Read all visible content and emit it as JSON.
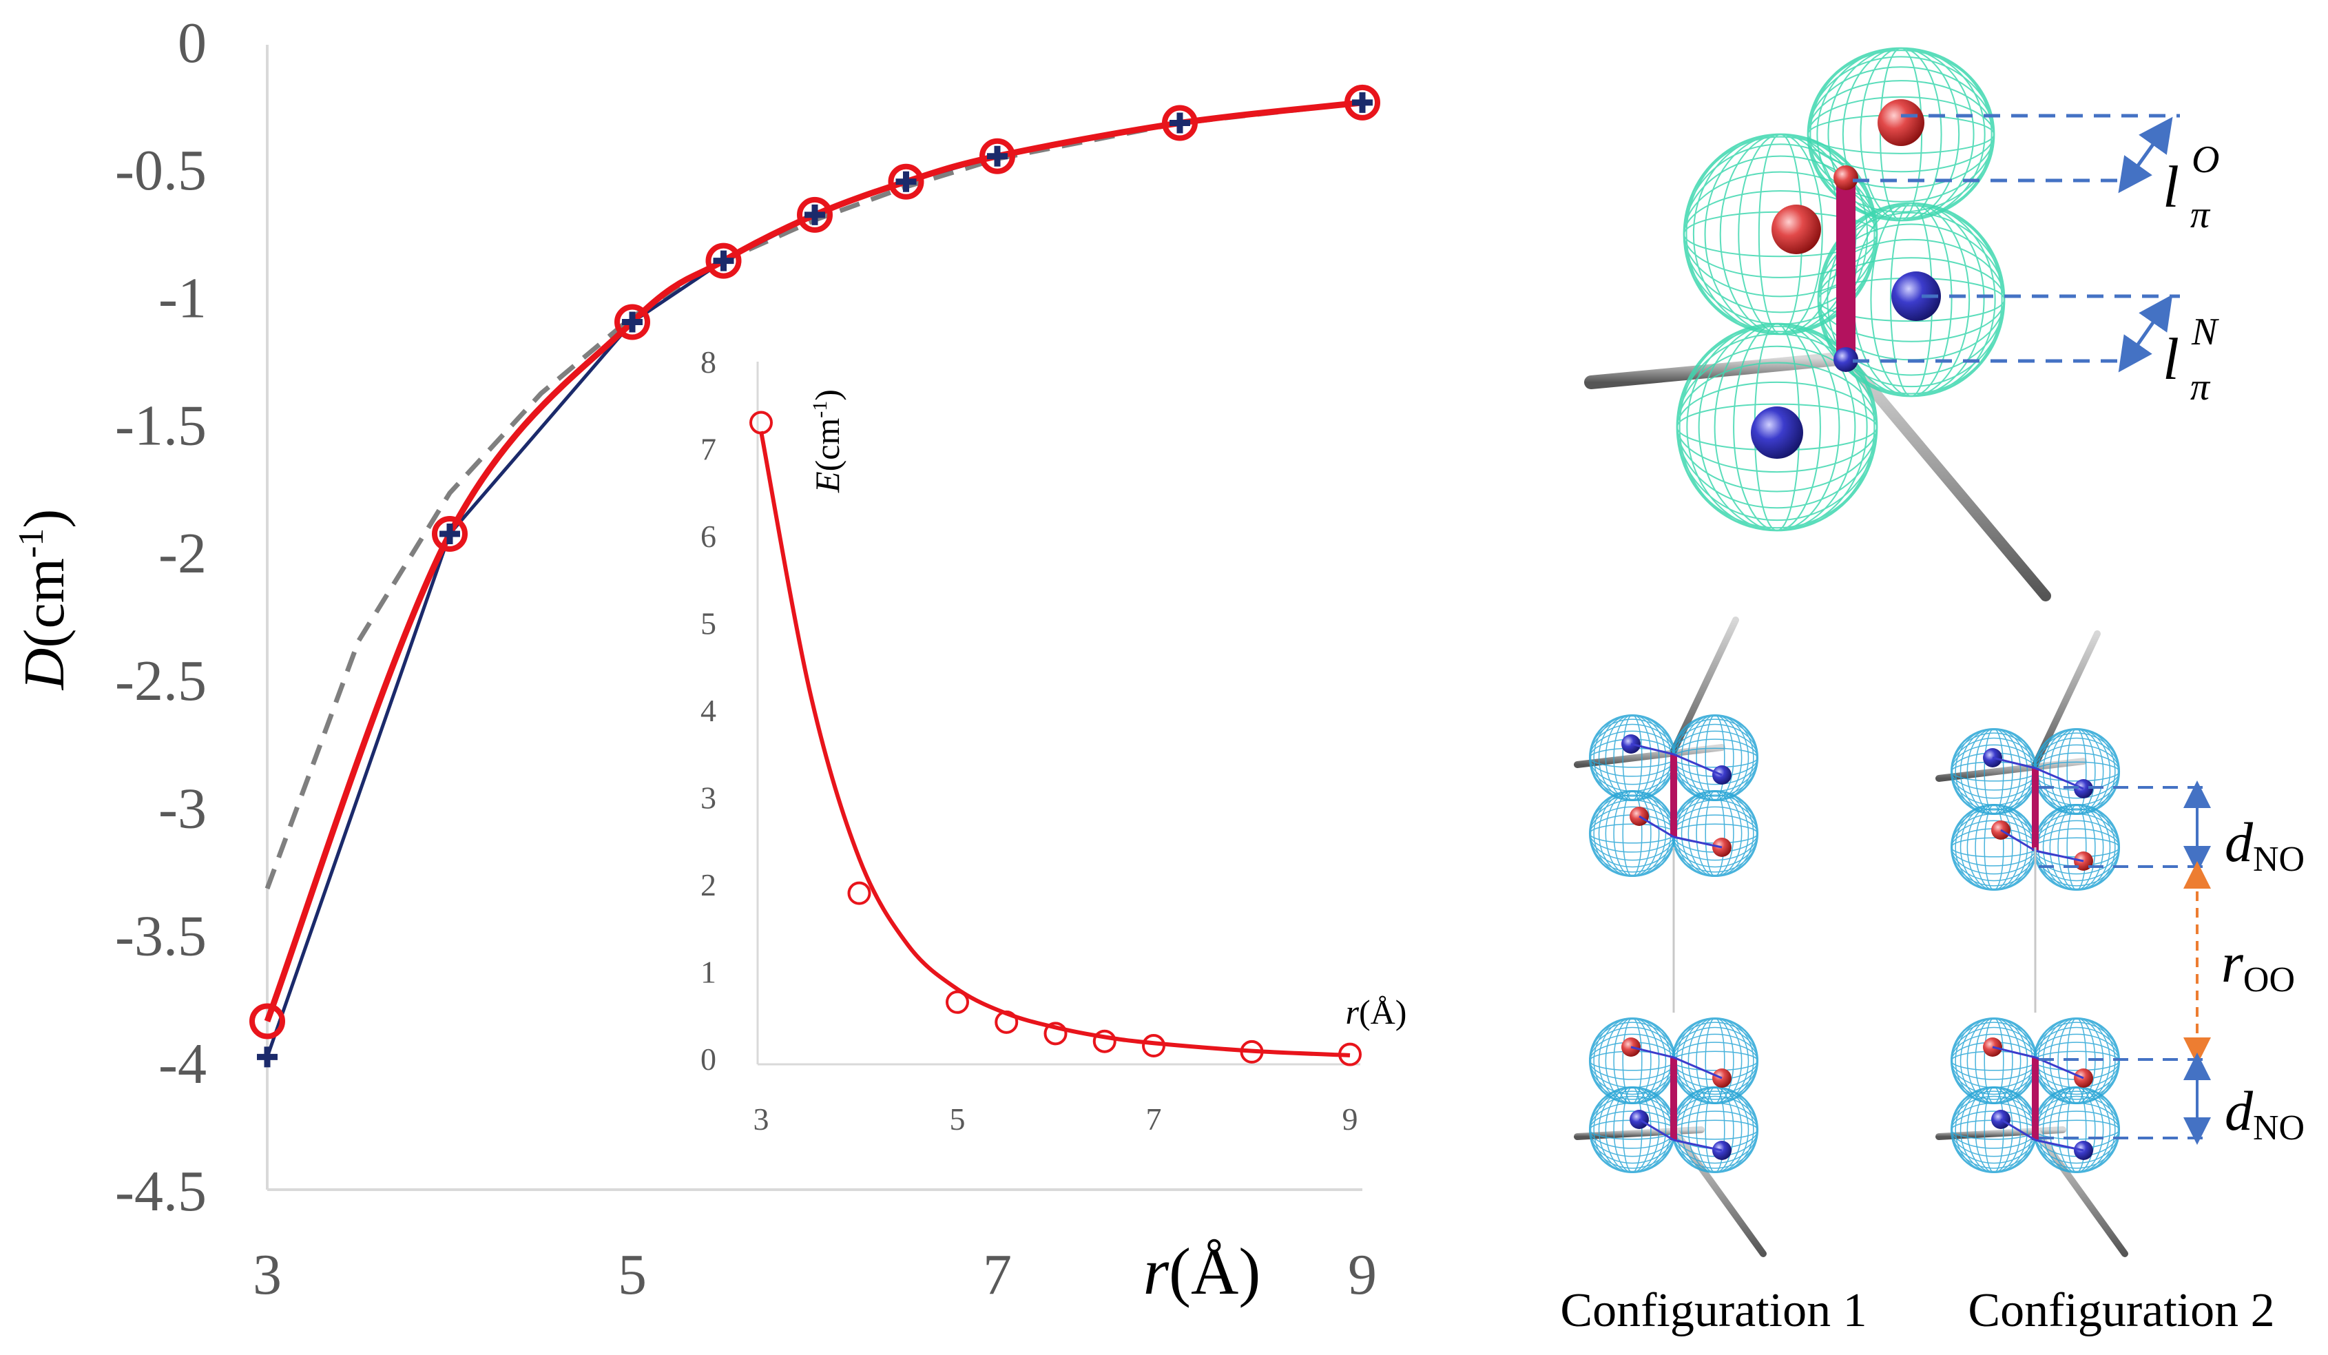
{
  "main_chart": {
    "y_label_var": "D",
    "y_label_unit": "(cm",
    "y_label_exp": "-1",
    "y_label_close": ")",
    "x_label_var": "r",
    "x_label_unit": "(Å)",
    "y_ticks": [
      "0",
      "-0.5",
      "-1",
      "-1.5",
      "-2",
      "-2.5",
      "-3",
      "-3.5",
      "-4",
      "-4.5"
    ],
    "x_ticks": [
      "3",
      "5",
      "7",
      "9"
    ]
  },
  "inset_chart": {
    "y_label_var": "E",
    "y_label_unit": "(cm",
    "y_label_exp": "-1",
    "y_label_close": ")",
    "x_label_var": "r",
    "x_label_unit": "(Å)",
    "y_ticks": [
      "0",
      "1",
      "2",
      "3",
      "4",
      "5",
      "6",
      "7",
      "8"
    ],
    "x_ticks": [
      "3",
      "5",
      "7",
      "9"
    ]
  },
  "chart_data": [
    {
      "type": "line",
      "xlabel": "r(Å)",
      "ylabel": "D(cm-1)",
      "xlim": [
        3,
        9
      ],
      "ylim": [
        -4.5,
        0
      ],
      "grid": false,
      "series": [
        {
          "style": "red line with open circles",
          "color": "#e8141b",
          "x": [
            3,
            4,
            5,
            5.5,
            6,
            6.5,
            7,
            8,
            9
          ],
          "y": [
            -3.84,
            -1.93,
            -1.1,
            -0.86,
            -0.68,
            -0.55,
            -0.45,
            -0.32,
            -0.24
          ]
        },
        {
          "style": "navy plus markers",
          "color": "#1b2a6b",
          "x": [
            3,
            4,
            5,
            5.5,
            6,
            6.5,
            7,
            8,
            9
          ],
          "y": [
            -3.98,
            -1.93,
            -1.1,
            -0.86,
            -0.68,
            -0.55,
            -0.45,
            -0.32,
            -0.24
          ]
        },
        {
          "style": "grey dashed line",
          "color": "#7f7f7f",
          "x": [
            3,
            3.5,
            4,
            4.5,
            5,
            5.5,
            6,
            6.5,
            7,
            8,
            9
          ],
          "y": [
            -3.32,
            -2.35,
            -1.77,
            -1.38,
            -1.08,
            -0.86,
            -0.7,
            -0.57,
            -0.46,
            -0.32,
            -0.24
          ]
        }
      ]
    },
    {
      "type": "line",
      "xlabel": "r(Å)",
      "ylabel": "E(cm-1)",
      "xlim": [
        3,
        9
      ],
      "ylim": [
        0,
        8
      ],
      "grid": false,
      "series": [
        {
          "style": "red open circles",
          "color": "#e8141b",
          "x": [
            3,
            4,
            5,
            5.5,
            6,
            6.5,
            7,
            8,
            9
          ],
          "y": [
            7.3,
            1.9,
            0.65,
            0.42,
            0.29,
            0.2,
            0.15,
            0.08,
            0.05
          ]
        },
        {
          "style": "red fit line",
          "color": "#e8141b",
          "x": [
            3,
            3.5,
            4,
            4.5,
            5,
            5.5,
            6,
            6.5,
            7,
            8,
            9
          ],
          "y": [
            7.2,
            4.2,
            2.3,
            1.3,
            0.8,
            0.52,
            0.36,
            0.25,
            0.18,
            0.09,
            0.04
          ]
        }
      ]
    }
  ],
  "molecule_top": {
    "label_O_main": "l",
    "label_O_sub": "π",
    "label_O_sup": "O",
    "label_N_main": "l",
    "label_N_sub": "π",
    "label_N_sup": "N"
  },
  "configurations": {
    "config1": "Configuration 1",
    "config2": "Configuration 2",
    "d_label": "d",
    "d_sub": "NO",
    "r_label": "r",
    "r_sub": "OO",
    "d2_label": "d",
    "d2_sub": "NO"
  },
  "colors": {
    "red": "#e8141b",
    "navy": "#1b2a6b",
    "dash": "#7f7f7f",
    "axis_text": "#595959",
    "cage_top": "#3fd8b0",
    "cage_bottom": "#2aa6d6",
    "atom_O": "#e24a4a",
    "atom_N": "#3c3ccc",
    "bond": "#b3125e",
    "guide_blue": "#4472c4",
    "guide_orange": "#ed7d31"
  }
}
